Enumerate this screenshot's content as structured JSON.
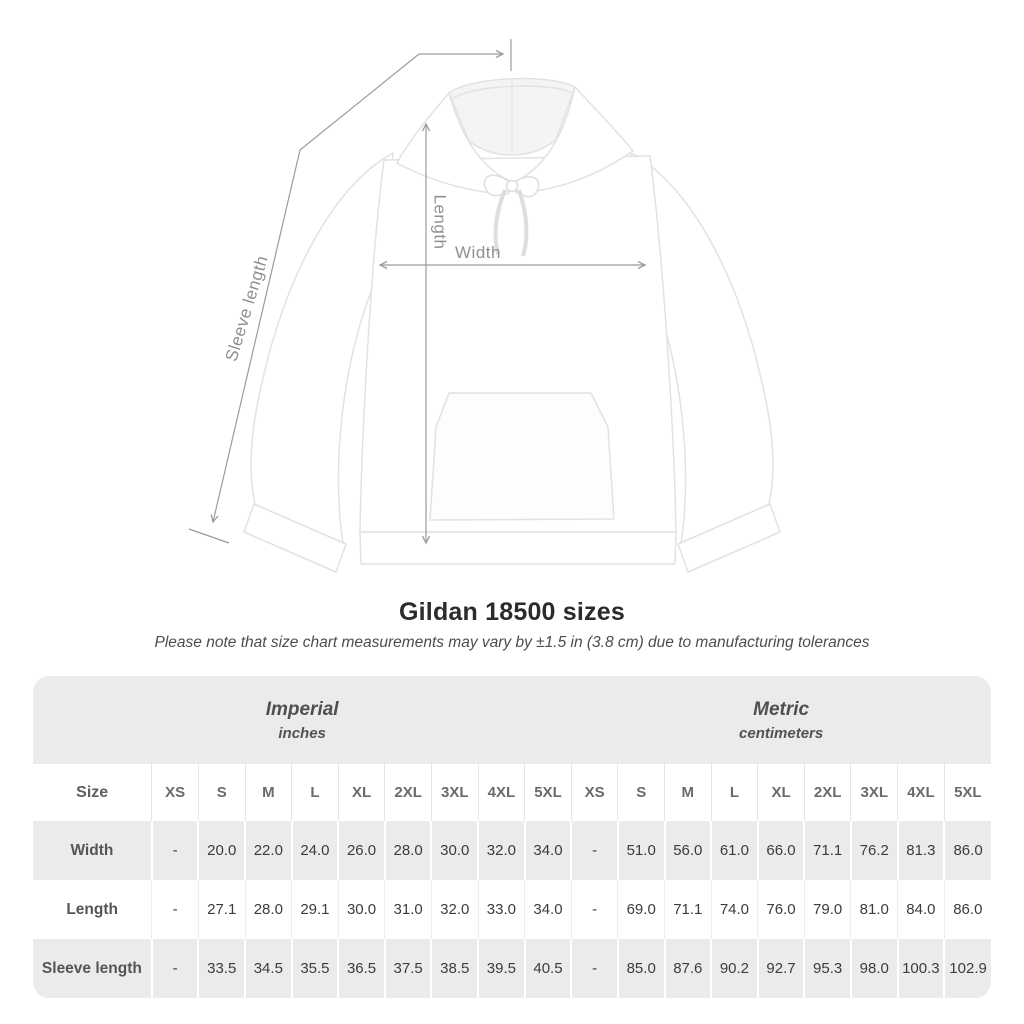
{
  "title": "Gildan 18500 sizes",
  "subtitle": "Please note that size chart measurements may vary by ±1.5 in (3.8 cm) due to manufacturing tolerances",
  "diagram": {
    "labels": {
      "sleeve_length": "Sleeve length",
      "length": "Length",
      "width": "Width"
    },
    "line_color": "#9b9b9b",
    "label_color": "#8f8f8f"
  },
  "table": {
    "size_column_label": "Size",
    "header_groups": [
      {
        "label": "Imperial",
        "unit": "inches",
        "span": 10
      },
      {
        "label": "Metric",
        "unit": "centimeters",
        "span": 9
      }
    ],
    "sizes": [
      "XS",
      "S",
      "M",
      "L",
      "XL",
      "2XL",
      "3XL",
      "4XL",
      "5XL"
    ],
    "rows": [
      {
        "label": "Width",
        "imperial": [
          "-",
          "20.0",
          "22.0",
          "24.0",
          "26.0",
          "28.0",
          "30.0",
          "32.0",
          "34.0"
        ],
        "metric": [
          "-",
          "51.0",
          "56.0",
          "61.0",
          "66.0",
          "71.1",
          "76.2",
          "81.3",
          "86.0"
        ]
      },
      {
        "label": "Length",
        "imperial": [
          "-",
          "27.1",
          "28.0",
          "29.1",
          "30.0",
          "31.0",
          "32.0",
          "33.0",
          "34.0"
        ],
        "metric": [
          "-",
          "69.0",
          "71.1",
          "74.0",
          "76.0",
          "79.0",
          "81.0",
          "84.0",
          "86.0"
        ]
      },
      {
        "label": "Sleeve length",
        "imperial": [
          "-",
          "33.5",
          "34.5",
          "35.5",
          "36.5",
          "37.5",
          "38.5",
          "39.5",
          "40.5"
        ],
        "metric": [
          "-",
          "85.0",
          "87.6",
          "90.2",
          "92.7",
          "95.3",
          "98.0",
          "100.3",
          "102.9"
        ]
      }
    ]
  }
}
